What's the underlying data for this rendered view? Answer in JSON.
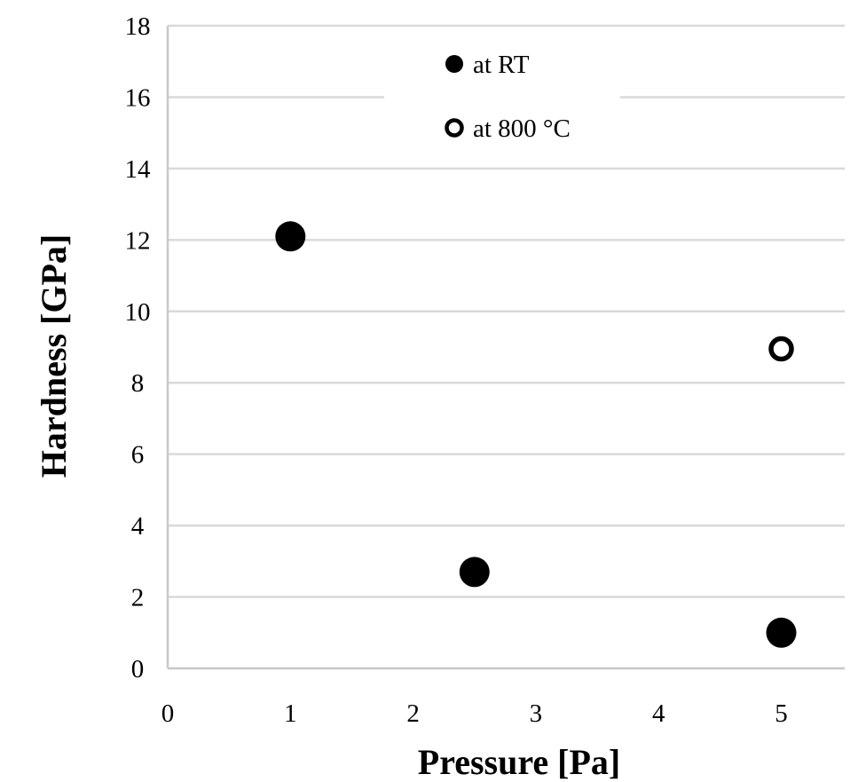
{
  "chart_data": {
    "type": "scatter",
    "title": "",
    "xlabel": "Pressure [Pa]",
    "ylabel": "Hardness [GPa]",
    "xlim": [
      0,
      5.5
    ],
    "ylim": [
      0,
      18
    ],
    "xticks": [
      "0",
      "1",
      "2",
      "3",
      "4",
      "5"
    ],
    "yticks": [
      "0",
      "2",
      "4",
      "6",
      "8",
      "10",
      "12",
      "14",
      "16",
      "18"
    ],
    "grid": "horizontal",
    "legend_position": "top-center",
    "series": [
      {
        "name": "at RT",
        "marker": "filled-circle",
        "color": "#000000",
        "points": [
          {
            "x": 1.0,
            "y": 12.1
          },
          {
            "x": 2.5,
            "y": 2.7
          },
          {
            "x": 5.0,
            "y": 1.0
          }
        ]
      },
      {
        "name": "at 800 °C",
        "marker": "open-circle",
        "color": "#000000",
        "points": [
          {
            "x": 5.0,
            "y": 8.95
          }
        ]
      }
    ]
  }
}
